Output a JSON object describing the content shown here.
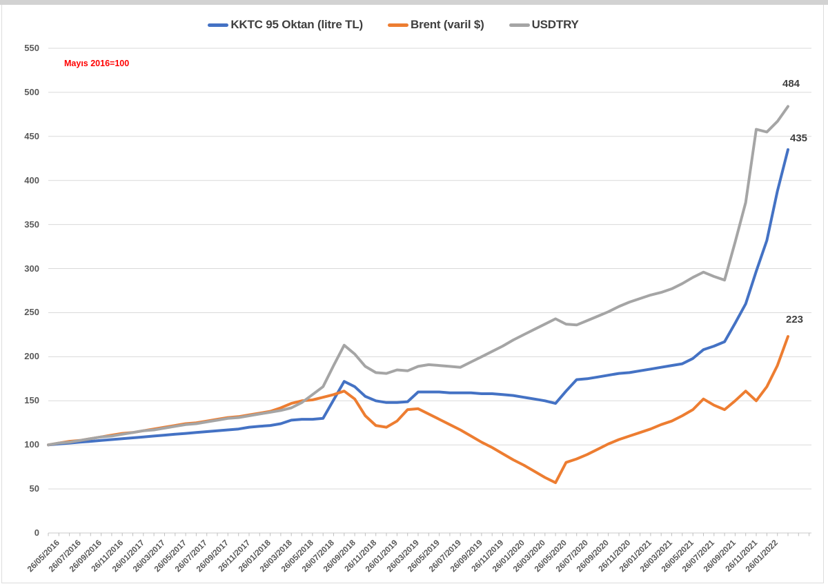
{
  "annotation": "Mayıs 2016=100",
  "chart_data": {
    "type": "line",
    "title": "",
    "annotation": "Mayıs 2016=100",
    "legend_position": "top",
    "grid": "horizontal",
    "tick_marks": "monthly",
    "ylim": [
      0,
      550
    ],
    "y_ticks": [
      0,
      50,
      100,
      150,
      200,
      250,
      300,
      350,
      400,
      450,
      500,
      550
    ],
    "x_label_frequency": "every 2nd month",
    "x_tick_labels": [
      "26/05/2016",
      "26/07/2016",
      "26/09/2016",
      "26/11/2016",
      "26/01/2017",
      "26/03/2017",
      "26/05/2017",
      "26/07/2017",
      "26/09/2017",
      "26/11/2017",
      "26/01/2018",
      "26/03/2018",
      "26/05/2018",
      "26/07/2018",
      "26/09/2018",
      "26/11/2018",
      "26/01/2019",
      "26/03/2019",
      "26/05/2019",
      "26/07/2019",
      "26/09/2019",
      "26/11/2019",
      "26/01/2020",
      "26/03/2020",
      "26/05/2020",
      "26/07/2020",
      "26/09/2020",
      "26/11/2020",
      "26/01/2021",
      "26/03/2021",
      "26/05/2021",
      "26/07/2021",
      "26/09/2021",
      "26/11/2021",
      "26/01/2022"
    ],
    "n_points": 71,
    "series": [
      {
        "name": "KKTC 95 Oktan (litre TL)",
        "color": "#4472C4",
        "end_label": "435",
        "values": [
          100,
          101,
          102,
          103,
          104,
          105,
          106,
          107,
          108,
          109,
          110,
          111,
          112,
          113,
          114,
          115,
          116,
          117,
          118,
          120,
          121,
          122,
          124,
          128,
          129,
          129,
          130,
          151,
          172,
          166,
          155,
          150,
          148,
          148,
          149,
          160,
          160,
          160,
          159,
          159,
          159,
          158,
          158,
          157,
          156,
          154,
          152,
          150,
          147,
          161,
          174,
          175,
          177,
          179,
          181,
          182,
          184,
          186,
          188,
          190,
          192,
          198,
          208,
          212,
          217,
          238,
          260,
          297,
          332,
          388,
          435
        ]
      },
      {
        "name": "Brent (varil $)",
        "color": "#ED7D31",
        "end_label": "223",
        "values": [
          100,
          102,
          104,
          105,
          107,
          109,
          111,
          113,
          114,
          116,
          118,
          120,
          122,
          124,
          125,
          127,
          129,
          131,
          132,
          134,
          136,
          138,
          142,
          147,
          150,
          151,
          154,
          157,
          161,
          152,
          133,
          122,
          120,
          127,
          140,
          141,
          135,
          129,
          123,
          117,
          110,
          103,
          97,
          90,
          83,
          77,
          70,
          63,
          57,
          80,
          84,
          89,
          95,
          101,
          106,
          110,
          114,
          118,
          123,
          127,
          133,
          140,
          152,
          145,
          140,
          150,
          161,
          150,
          166,
          190,
          223
        ]
      },
      {
        "name": "USDTRY",
        "color": "#A5A5A5",
        "end_label": "484",
        "values": [
          100,
          102,
          103,
          105,
          107,
          109,
          110,
          112,
          114,
          116,
          117,
          119,
          121,
          123,
          124,
          126,
          128,
          130,
          131,
          133,
          135,
          137,
          139,
          142,
          148,
          157,
          166,
          190,
          213,
          203,
          189,
          182,
          181,
          185,
          184,
          189,
          191,
          190,
          189,
          188,
          194,
          200,
          206,
          212,
          219,
          225,
          231,
          237,
          243,
          237,
          236,
          241,
          246,
          251,
          257,
          262,
          266,
          270,
          273,
          277,
          283,
          290,
          296,
          291,
          287,
          330,
          375,
          458,
          455,
          467,
          484
        ]
      }
    ]
  }
}
